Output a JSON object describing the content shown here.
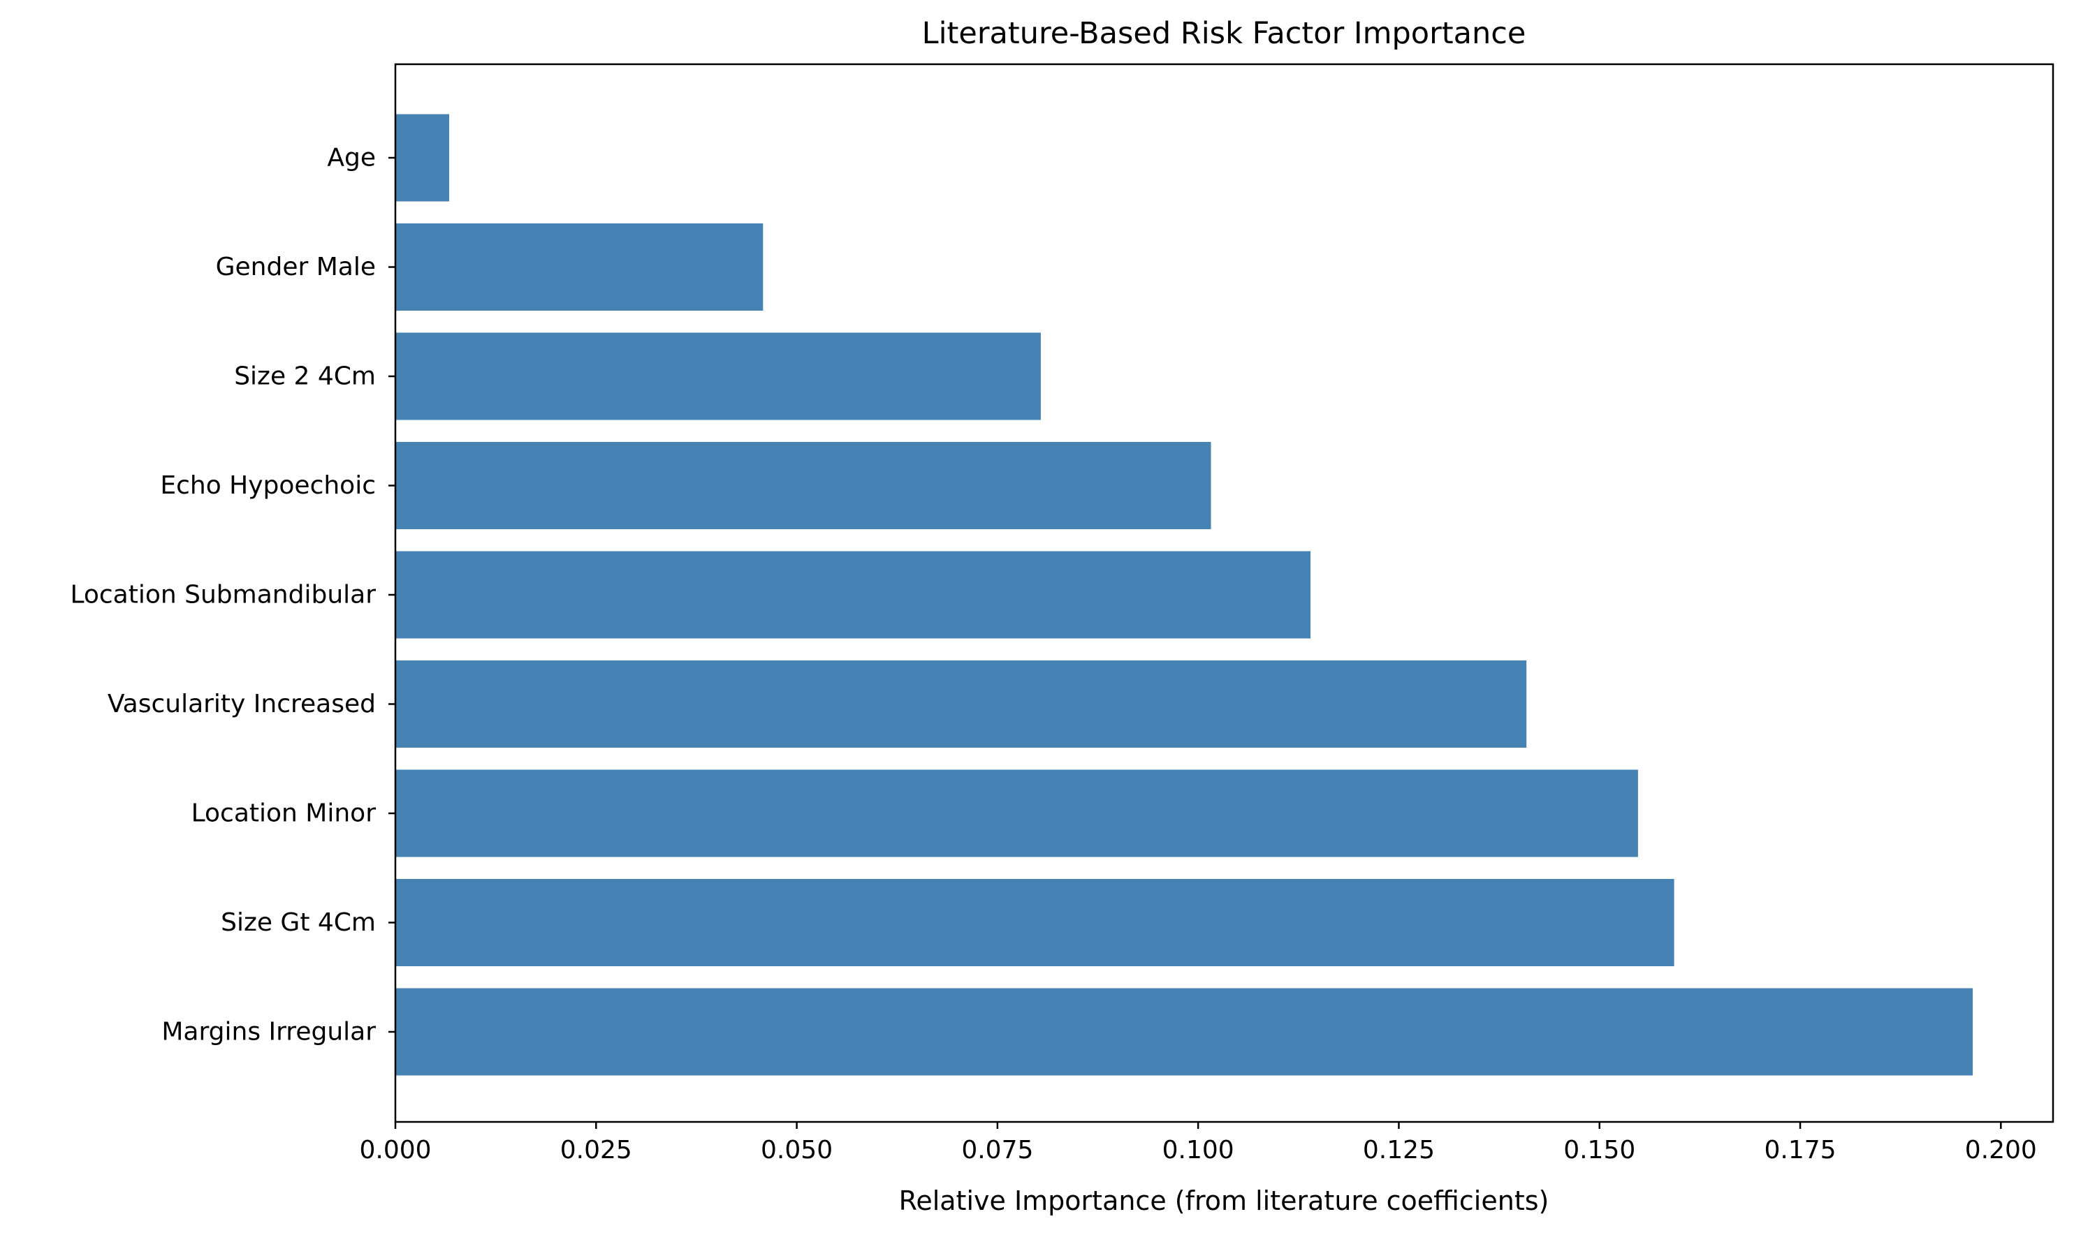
{
  "chart_data": {
    "type": "bar",
    "orientation": "horizontal",
    "title": "Literature-Based Risk Factor Importance",
    "xlabel": "Relative Importance (from literature coefficients)",
    "ylabel": "",
    "categories": [
      "Age",
      "Gender Male",
      "Size 2 4Cm",
      "Echo Hypoechoic",
      "Location Submandibular",
      "Vascularity Increased",
      "Location Minor",
      "Size Gt 4Cm",
      "Margins Irregular"
    ],
    "values": [
      0.0067,
      0.0458,
      0.0804,
      0.1016,
      0.114,
      0.1409,
      0.1548,
      0.1593,
      0.1965
    ],
    "xlim": [
      0,
      0.2065
    ],
    "xticks": [
      0.0,
      0.025,
      0.05,
      0.075,
      0.1,
      0.125,
      0.15,
      0.175,
      0.2
    ],
    "xtick_labels": [
      "0.000",
      "0.025",
      "0.050",
      "0.075",
      "0.100",
      "0.125",
      "0.150",
      "0.175",
      "0.200"
    ],
    "bar_color": "#4682b4",
    "grid": false,
    "legend": "none"
  }
}
